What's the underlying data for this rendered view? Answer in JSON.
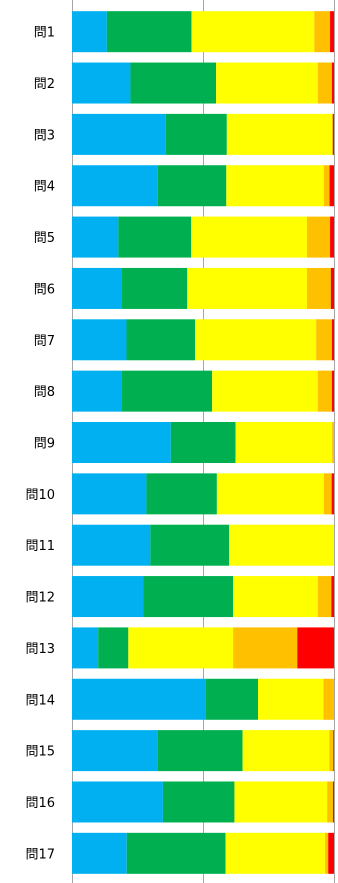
{
  "chart_data": {
    "type": "bar",
    "orientation": "horizontal",
    "stacked": "percent",
    "categories": [
      "問1",
      "問2",
      "問3",
      "問4",
      "問5",
      "問6",
      "問7",
      "問8",
      "問9",
      "問10",
      "問11",
      "問12",
      "問13",
      "問14",
      "問15",
      "問16",
      "問17"
    ],
    "series": [
      {
        "color": "#00b0f0",
        "values": [
          13.3,
          22.3,
          35.4,
          32.7,
          17.7,
          18.8,
          20.8,
          18.8,
          37.7,
          28.4,
          29.9,
          27.3,
          10.0,
          51.0,
          32.8,
          34.7,
          20.9
        ]
      },
      {
        "color": "#00b050",
        "values": [
          32.3,
          32.7,
          23.1,
          26.2,
          27.8,
          25.2,
          26.2,
          34.7,
          24.7,
          26.9,
          30.1,
          34.2,
          11.5,
          20.0,
          32.3,
          27.3,
          37.7
        ]
      },
      {
        "color": "#ffff00",
        "values": [
          46.9,
          38.8,
          40.0,
          37.2,
          44.2,
          45.7,
          46.2,
          40.3,
          36.9,
          40.8,
          40.0,
          32.3,
          40.0,
          25.0,
          33.1,
          35.4,
          38.0
        ]
      },
      {
        "color": "#ffc000",
        "values": [
          6.0,
          5.4,
          0.0,
          2.2,
          8.8,
          9.1,
          6.0,
          5.4,
          0.7,
          3.0,
          0.0,
          5.2,
          24.5,
          4.0,
          1.5,
          2.2,
          1.2
        ]
      },
      {
        "color": "#ff0000",
        "values": [
          1.5,
          0.8,
          0.5,
          1.7,
          1.5,
          1.2,
          0.8,
          0.8,
          0.0,
          0.9,
          0.0,
          1.0,
          14.0,
          0.0,
          0.3,
          0.4,
          2.2
        ]
      }
    ],
    "xlim": [
      0,
      100
    ],
    "grid": "vertical",
    "legend": "none"
  }
}
